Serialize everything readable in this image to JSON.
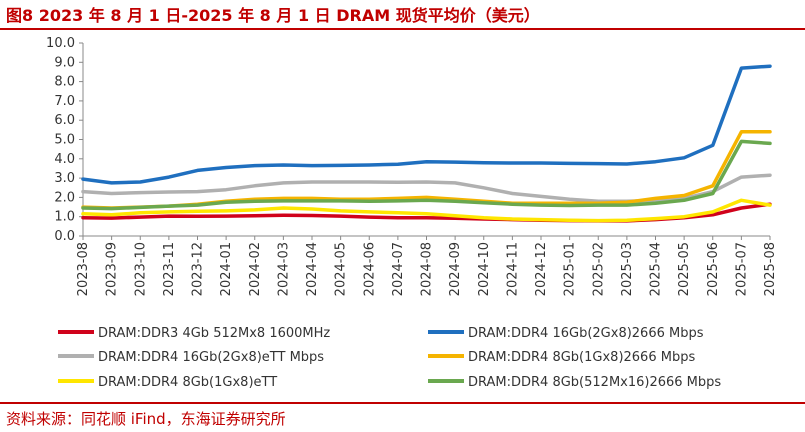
{
  "header": {
    "title": "图8 2023 年 8 月 1 日-2025 年 8 月 1 日 DRAM 现货平均价（美元）"
  },
  "footer": {
    "source": "资料来源：同花顺 iFind，东海证券研究所"
  },
  "chart_data": {
    "type": "line",
    "title": "",
    "xlabel": "",
    "ylabel": "",
    "ylim": [
      0,
      10
    ],
    "yticks": [
      "0.0",
      "1.0",
      "2.0",
      "3.0",
      "4.0",
      "5.0",
      "6.0",
      "7.0",
      "8.0",
      "9.0",
      "10.0"
    ],
    "grid": false,
    "legend_position": "bottom",
    "categories": [
      "2023-08",
      "2023-09",
      "2023-10",
      "2023-11",
      "2023-12",
      "2024-01",
      "2024-02",
      "2024-03",
      "2024-04",
      "2024-05",
      "2024-06",
      "2024-07",
      "2024-08",
      "2024-09",
      "2024-10",
      "2024-11",
      "2024-12",
      "2025-01",
      "2025-02",
      "2025-03",
      "2025-04",
      "2025-05",
      "2025-06",
      "2025-07",
      "2025-08"
    ],
    "series": [
      {
        "name": "DRAM:DDR3 4Gb 512Mx8 1600MHz",
        "color": "#d0021b",
        "values": [
          0.95,
          0.93,
          0.98,
          1.03,
          1.02,
          1.03,
          1.05,
          1.07,
          1.06,
          1.03,
          0.98,
          0.95,
          0.95,
          0.92,
          0.88,
          0.85,
          0.82,
          0.8,
          0.78,
          0.78,
          0.85,
          0.95,
          1.1,
          1.45,
          1.65
        ]
      },
      {
        "name": "DRAM:DDR4 16Gb(2Gx8)2666 Mbps",
        "color": "#1f6fbf",
        "values": [
          2.95,
          2.75,
          2.8,
          3.05,
          3.4,
          3.55,
          3.65,
          3.68,
          3.65,
          3.66,
          3.68,
          3.72,
          3.85,
          3.83,
          3.8,
          3.78,
          3.78,
          3.76,
          3.75,
          3.73,
          3.85,
          4.05,
          4.7,
          8.7,
          8.8
        ]
      },
      {
        "name": "DRAM:DDR4 16Gb(2Gx8)eTT Mbps",
        "color": "#b0b0b0",
        "values": [
          2.3,
          2.2,
          2.25,
          2.28,
          2.3,
          2.4,
          2.6,
          2.75,
          2.8,
          2.8,
          2.8,
          2.78,
          2.8,
          2.75,
          2.5,
          2.2,
          2.05,
          1.9,
          1.8,
          1.8,
          1.85,
          1.95,
          2.3,
          3.05,
          3.15
        ]
      },
      {
        "name": "DRAM:DDR4 8Gb(1Gx8)2666 Mbps",
        "color": "#f5b400",
        "values": [
          1.5,
          1.45,
          1.5,
          1.55,
          1.65,
          1.8,
          1.9,
          1.95,
          1.95,
          1.9,
          1.9,
          1.95,
          2.0,
          1.9,
          1.8,
          1.7,
          1.7,
          1.7,
          1.7,
          1.75,
          1.95,
          2.1,
          2.6,
          5.4,
          5.4
        ]
      },
      {
        "name": "DRAM:DDR4 8Gb(1Gx8)eTT",
        "color": "#ffe600",
        "values": [
          1.15,
          1.1,
          1.2,
          1.25,
          1.28,
          1.3,
          1.35,
          1.45,
          1.4,
          1.3,
          1.25,
          1.2,
          1.15,
          1.05,
          0.95,
          0.88,
          0.85,
          0.82,
          0.8,
          0.82,
          0.9,
          1.0,
          1.25,
          1.85,
          1.6
        ]
      },
      {
        "name": "DRAM:DDR4 8Gb(512Mx16)2666 Mbps",
        "color": "#6aa84f",
        "values": [
          1.45,
          1.42,
          1.48,
          1.55,
          1.6,
          1.75,
          1.8,
          1.82,
          1.82,
          1.82,
          1.8,
          1.82,
          1.85,
          1.8,
          1.72,
          1.65,
          1.6,
          1.58,
          1.6,
          1.6,
          1.7,
          1.85,
          2.2,
          4.9,
          4.8
        ]
      }
    ]
  }
}
